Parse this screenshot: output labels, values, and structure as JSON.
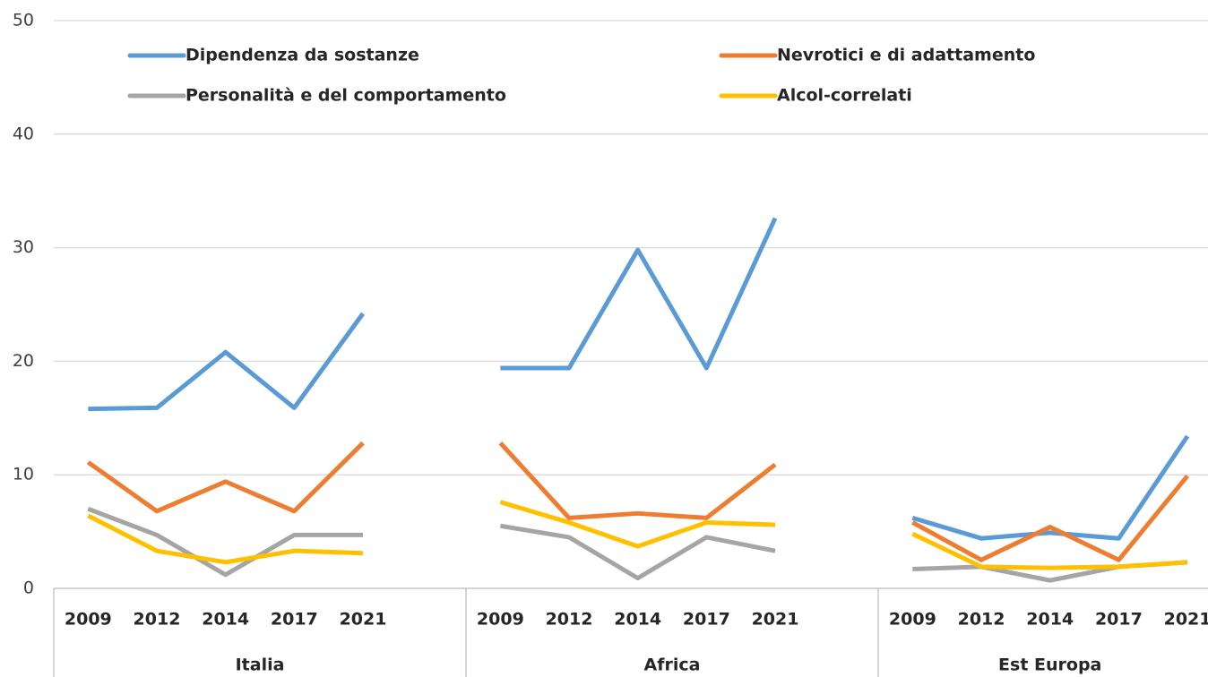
{
  "chart_data": {
    "type": "line",
    "categories": [
      "2009",
      "2012",
      "2014",
      "2017",
      "2021",
      null,
      "2009",
      "2012",
      "2014",
      "2017",
      "2021",
      null,
      "2009",
      "2012",
      "2014",
      "2017",
      "2021"
    ],
    "groups": [
      "Italia",
      "Africa",
      "Est Europa"
    ],
    "ylim": [
      0,
      50
    ],
    "yticks": [
      0,
      10,
      20,
      30,
      40,
      50
    ],
    "grid": true,
    "series": [
      {
        "name": "Dipendenza da sostanze",
        "color": "#5b9bd5",
        "values": [
          15.8,
          15.9,
          20.8,
          15.9,
          24.2,
          null,
          19.4,
          19.4,
          29.8,
          19.4,
          32.6,
          null,
          6.2,
          4.4,
          4.9,
          4.4,
          13.4
        ]
      },
      {
        "name": "Nevrotici e di adattamento",
        "color": "#ed7d31",
        "values": [
          11.1,
          6.8,
          9.4,
          6.8,
          12.8,
          null,
          12.8,
          6.2,
          6.6,
          6.2,
          10.9,
          null,
          5.8,
          2.5,
          5.4,
          2.5,
          9.9
        ]
      },
      {
        "name": "Personalità e del comportamento",
        "color": "#a5a5a5",
        "values": [
          7.0,
          4.7,
          1.2,
          4.7,
          4.7,
          null,
          5.5,
          4.5,
          0.9,
          4.5,
          3.3,
          null,
          1.7,
          1.9,
          0.7,
          1.9,
          2.3
        ]
      },
      {
        "name": "Alcol-correlati",
        "color": "#ffc000",
        "values": [
          6.4,
          3.3,
          2.3,
          3.3,
          3.1,
          null,
          7.6,
          5.8,
          3.7,
          5.8,
          5.6,
          null,
          4.8,
          1.9,
          1.8,
          1.9,
          2.3
        ]
      }
    ]
  }
}
